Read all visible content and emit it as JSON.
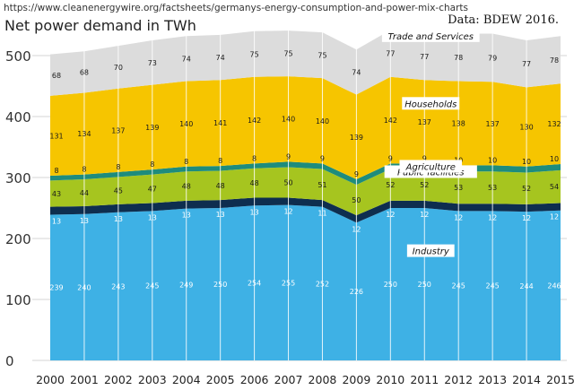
{
  "header": {
    "source_url": "https://www.cleanenergywire.org/factsheets/germanys-energy-consumption-and-power-mix-charts",
    "title": "Net power demand in TWh",
    "credit": "Data: BDEW 2016."
  },
  "chart_data": {
    "type": "area",
    "stacked": true,
    "title": "Net power demand in TWh",
    "xlabel": "",
    "ylabel": "",
    "categories": [
      "2000",
      "2001",
      "2002",
      "2003",
      "2004",
      "2005",
      "2006",
      "2007",
      "2008",
      "2009",
      "2010",
      "2011",
      "2012",
      "2013",
      "2014",
      "2015"
    ],
    "ylim": [
      0,
      500
    ],
    "yticks": [
      0,
      100,
      200,
      300,
      400,
      500
    ],
    "grid": true,
    "series": [
      {
        "name": "Industry",
        "color": "#3eb1e5",
        "label_color": "#ffffff",
        "values": [
          239,
          240,
          243,
          245,
          249,
          250,
          254,
          255,
          252,
          226,
          250,
          250,
          245,
          245,
          244,
          246
        ]
      },
      {
        "name": "",
        "color": "#0e2e4f",
        "label_color": "#ffffff",
        "values": [
          13,
          13,
          13,
          13,
          13,
          13,
          13,
          12,
          11,
          12,
          12,
          12,
          12,
          12,
          12,
          12
        ]
      },
      {
        "name": "Public facilities",
        "color": "#a6c51f",
        "label_color": "#1a1a1a",
        "values": [
          43,
          44,
          45,
          47,
          48,
          48,
          48,
          50,
          51,
          50,
          52,
          52,
          53,
          53,
          52,
          54
        ]
      },
      {
        "name": "Agriculture",
        "color": "#1e8c7c",
        "label_color": "#1a1a1a",
        "values": [
          8,
          8,
          8,
          8,
          8,
          8,
          8,
          9,
          9,
          9,
          9,
          9,
          10,
          10,
          10,
          10
        ]
      },
      {
        "name": "Households",
        "color": "#f6c500",
        "label_color": "#1a1a1a",
        "values": [
          131,
          134,
          137,
          139,
          140,
          141,
          142,
          140,
          140,
          139,
          142,
          137,
          138,
          137,
          130,
          132
        ]
      },
      {
        "name": "Trade and Services",
        "color": "#dcdcdc",
        "label_color": "#1a1a1a",
        "values": [
          68,
          68,
          70,
          73,
          74,
          74,
          75,
          75,
          75,
          74,
          77,
          77,
          78,
          79,
          77,
          78
        ]
      }
    ]
  }
}
